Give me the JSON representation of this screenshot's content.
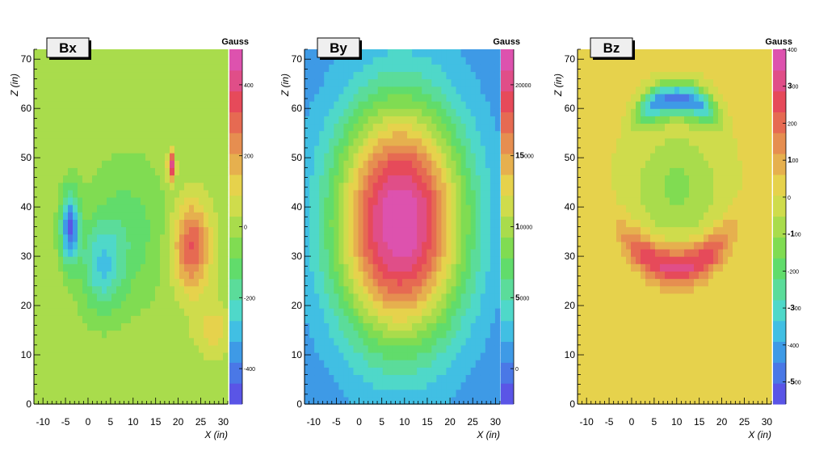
{
  "chart_data": [
    {
      "type": "heatmap",
      "title": "Bx",
      "unit_label": "Gauss",
      "xlabel": "X (in)",
      "ylabel": "Z (in)",
      "xlim": [
        -12,
        31
      ],
      "ylim": [
        0,
        72
      ],
      "x_ticks": [
        "-10",
        "-5",
        "0",
        "5",
        "10",
        "15",
        "20",
        "25",
        "30"
      ],
      "y_ticks": [
        "0",
        "10",
        "20",
        "30",
        "40",
        "50",
        "60",
        "70"
      ],
      "colorbar": {
        "range": [
          -500,
          500
        ],
        "ticks": [
          {
            "value": 400,
            "main": "",
            "small": "400"
          },
          {
            "value": 200,
            "main": "",
            "small": "200"
          },
          {
            "value": 0,
            "main": "",
            "small": "0"
          },
          {
            "value": -200,
            "main": "",
            "small": "-200"
          },
          {
            "value": -400,
            "main": "",
            "small": "-400"
          }
        ]
      },
      "features": [
        {
          "x": -4,
          "z": 36,
          "value": -440,
          "sx": 2.0,
          "sz": 7
        },
        {
          "x": 3,
          "z": 28,
          "value": -230,
          "sx": 4.5,
          "sz": 9
        },
        {
          "x": 23,
          "z": 32,
          "value": 330,
          "sx": 4.0,
          "sz": 9
        },
        {
          "x": 18.5,
          "z": 48.5,
          "value": 420,
          "sx": 0.8,
          "sz": 3
        },
        {
          "x": 28,
          "z": 15,
          "value": 120,
          "sx": 4.0,
          "sz": 5
        },
        {
          "x": 9,
          "z": 35,
          "value": -120,
          "sx": 8.0,
          "sz": 14
        }
      ],
      "background_value": 0
    },
    {
      "type": "heatmap",
      "title": "By",
      "unit_label": "Gauss",
      "xlabel": "X (in)",
      "ylabel": "Z (in)",
      "xlim": [
        -12,
        31
      ],
      "ylim": [
        0,
        72
      ],
      "x_ticks": [
        "-10",
        "-5",
        "0",
        "5",
        "10",
        "15",
        "20",
        "25",
        "30"
      ],
      "y_ticks": [
        "0",
        "10",
        "20",
        "30",
        "40",
        "50",
        "60",
        "70"
      ],
      "colorbar": {
        "range": [
          -2500,
          22500
        ],
        "ticks": [
          {
            "value": 20000,
            "main": "",
            "small": "20000"
          },
          {
            "value": 15000,
            "main": "15",
            "small": "000"
          },
          {
            "value": 10000,
            "main": "1",
            "small": "0000"
          },
          {
            "value": 5000,
            "main": "5",
            "small": "000"
          },
          {
            "value": 0,
            "main": "",
            "small": "0"
          }
        ]
      },
      "features": [
        {
          "x": 9,
          "z": 37,
          "value": 21500,
          "cx_scale": 13.5,
          "cz_scale": 23
        }
      ],
      "background_value": 1000
    },
    {
      "type": "heatmap",
      "title": "Bz",
      "unit_label": "Gauss",
      "xlabel": "X (in)",
      "ylabel": "Z (in)",
      "xlim": [
        -12,
        31
      ],
      "ylim": [
        0,
        72
      ],
      "x_ticks": [
        "-10",
        "-5",
        "0",
        "5",
        "10",
        "15",
        "20",
        "25",
        "30"
      ],
      "y_ticks": [
        "0",
        "10",
        "20",
        "30",
        "40",
        "50",
        "60",
        "70"
      ],
      "colorbar": {
        "range": [
          -560,
          400
        ],
        "ticks": [
          {
            "value": 400,
            "main": "",
            "small": "400"
          },
          {
            "value": 300,
            "main": "3",
            "small": "00"
          },
          {
            "value": 200,
            "main": "",
            "small": "200"
          },
          {
            "value": 100,
            "main": "1",
            "small": "00"
          },
          {
            "value": 0,
            "main": "",
            "small": "0"
          },
          {
            "value": -100,
            "main": "-1",
            "small": "00"
          },
          {
            "value": -200,
            "main": "",
            "small": "-200"
          },
          {
            "value": -300,
            "main": "-3",
            "small": "00"
          },
          {
            "value": -400,
            "main": "",
            "small": "-400"
          },
          {
            "value": -500,
            "main": "-5",
            "small": "00"
          }
        ]
      },
      "features": [
        {
          "x": 10,
          "z": 60,
          "value": -470,
          "arc": "upper"
        },
        {
          "x": 10,
          "z": 28,
          "value": 300,
          "arc": "lower"
        }
      ],
      "background_value": 20
    }
  ]
}
